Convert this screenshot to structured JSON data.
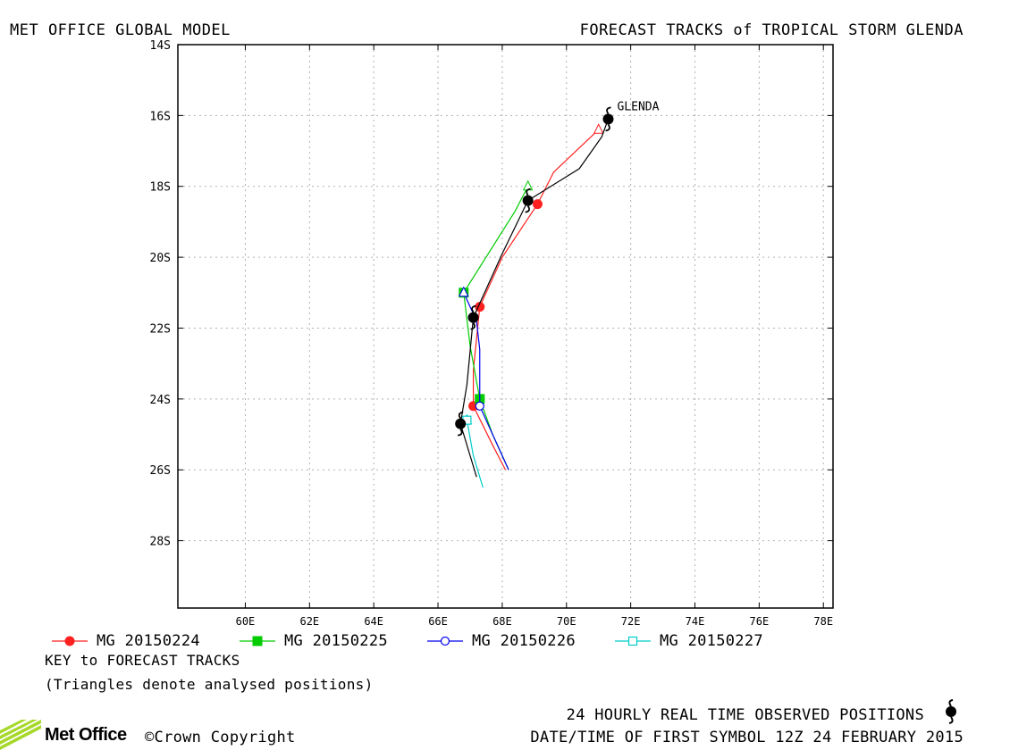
{
  "header": {
    "left_title": "MET OFFICE GLOBAL MODEL",
    "right_title": "FORECAST TRACKS of TROPICAL STORM GLENDA"
  },
  "map": {
    "lat_labels": [
      "14S",
      "16S",
      "18S",
      "20S",
      "22S",
      "24S",
      "26S",
      "28S"
    ],
    "lon_labels": [
      "60E",
      "62E",
      "64E",
      "66E",
      "68E",
      "70E",
      "72E",
      "74E",
      "76E",
      "78E"
    ],
    "lat_range": [
      -14,
      -29.9
    ],
    "lon_range": [
      57.9,
      78.3
    ],
    "storm_label": "GLENDA",
    "colors": {
      "frame": "#000000",
      "grid": "#b0b0b0",
      "observed": "#000000"
    }
  },
  "tracks": [
    {
      "name": "MG 20150224",
      "color": "#ff2020",
      "marker": "filled-circle",
      "points": [
        [
          71.0,
          -16.4
        ],
        [
          69.6,
          -17.6
        ],
        [
          69.1,
          -18.5
        ],
        [
          68.0,
          -20.0
        ],
        [
          67.3,
          -21.4
        ],
        [
          67.1,
          -23.2
        ],
        [
          67.1,
          -24.2
        ],
        [
          67.7,
          -25.3
        ],
        [
          68.1,
          -26.0
        ]
      ],
      "markers": [
        [
          69.1,
          -18.5
        ],
        [
          67.3,
          -21.4
        ],
        [
          67.1,
          -24.2
        ]
      ]
    },
    {
      "name": "MG 20150225",
      "color": "#00cc00",
      "marker": "filled-square",
      "points": [
        [
          68.8,
          -18.0
        ],
        [
          68.4,
          -18.7
        ],
        [
          66.8,
          -21.0
        ],
        [
          67.0,
          -22.5
        ],
        [
          67.3,
          -24.0
        ],
        [
          67.7,
          -25.0
        ],
        [
          68.2,
          -26.0
        ]
      ],
      "markers": [
        [
          66.8,
          -21.0
        ],
        [
          67.3,
          -24.0
        ]
      ]
    },
    {
      "name": "MG 20150226",
      "color": "#0000ee",
      "marker": "open-circle",
      "points": [
        [
          66.8,
          -21.0
        ],
        [
          67.2,
          -21.8
        ],
        [
          67.3,
          -22.6
        ],
        [
          67.3,
          -24.2
        ],
        [
          67.8,
          -25.2
        ],
        [
          68.2,
          -26.0
        ]
      ],
      "markers": [
        [
          67.3,
          -24.2
        ]
      ]
    },
    {
      "name": "MG 20150227",
      "color": "#00cccc",
      "marker": "open-square",
      "points": [
        [
          66.9,
          -24.6
        ],
        [
          67.1,
          -25.6
        ],
        [
          67.4,
          -26.5
        ]
      ],
      "markers": [
        [
          66.9,
          -24.6
        ]
      ]
    }
  ],
  "observed_track": {
    "points": [
      [
        71.3,
        -16.1
      ],
      [
        71.1,
        -16.6
      ],
      [
        70.4,
        -17.5
      ],
      [
        68.8,
        -18.4
      ],
      [
        68.0,
        -19.9
      ],
      [
        67.1,
        -21.7
      ],
      [
        66.9,
        -23.6
      ],
      [
        66.7,
        -24.7
      ],
      [
        67.2,
        -26.2
      ]
    ],
    "symbols": [
      [
        71.3,
        -16.1
      ],
      [
        68.8,
        -18.4
      ],
      [
        67.1,
        -21.7
      ],
      [
        66.7,
        -24.7
      ]
    ]
  },
  "legend": {
    "key_title": "KEY to FORECAST TRACKS",
    "note": "(Triangles denote analysed positions)"
  },
  "footer": {
    "logo_text": "Met Office",
    "copyright": "©Crown Copyright",
    "observed_caption": "24 HOURLY REAL TIME OBSERVED POSITIONS",
    "datetime_caption": "DATE/TIME OF FIRST SYMBOL 12Z 24 FEBRUARY 2015"
  }
}
